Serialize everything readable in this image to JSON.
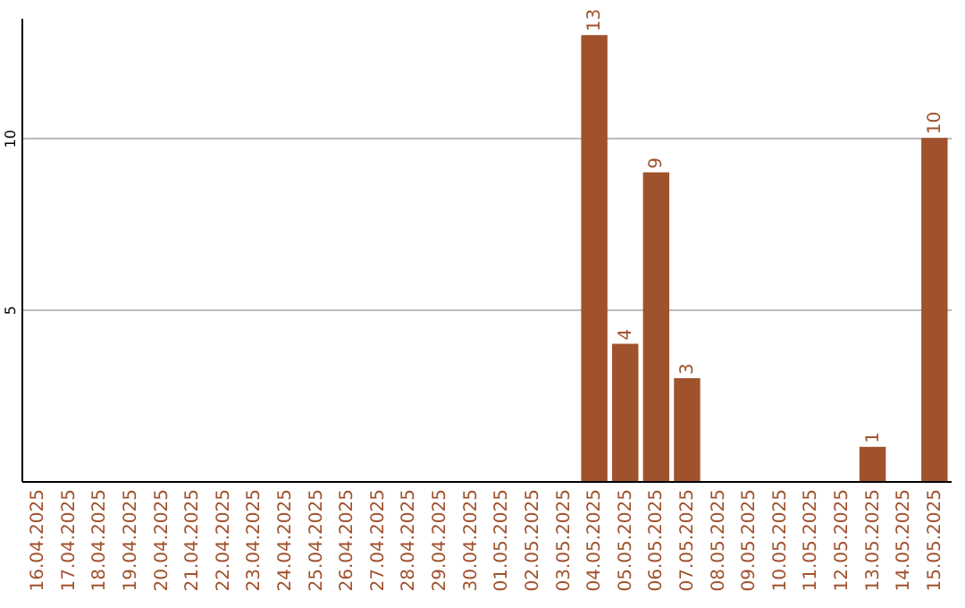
{
  "chart_data": {
    "type": "bar",
    "categories": [
      "16.04.2025",
      "17.04.2025",
      "18.04.2025",
      "19.04.2025",
      "20.04.2025",
      "21.04.2025",
      "22.04.2025",
      "23.04.2025",
      "24.04.2025",
      "25.04.2025",
      "26.04.2025",
      "27.04.2025",
      "28.04.2025",
      "29.04.2025",
      "30.04.2025",
      "01.05.2025",
      "02.05.2025",
      "03.05.2025",
      "04.05.2025",
      "05.05.2025",
      "06.05.2025",
      "07.05.2025",
      "08.05.2025",
      "09.05.2025",
      "10.05.2025",
      "11.05.2025",
      "12.05.2025",
      "13.05.2025",
      "14.05.2025",
      "15.05.2025"
    ],
    "values": [
      0,
      0,
      0,
      0,
      0,
      0,
      0,
      0,
      0,
      0,
      0,
      0,
      0,
      0,
      0,
      0,
      0,
      0,
      13,
      4,
      9,
      3,
      0,
      0,
      0,
      0,
      0,
      1,
      0,
      10
    ],
    "value_labels": [
      null,
      null,
      null,
      null,
      null,
      null,
      null,
      null,
      null,
      null,
      null,
      null,
      null,
      null,
      null,
      null,
      null,
      null,
      "13",
      "4",
      "9",
      "3",
      null,
      null,
      null,
      null,
      null,
      "1",
      null,
      "10"
    ],
    "color": "#a0522d",
    "ylim": [
      0,
      13.5
    ],
    "yticks": [
      5,
      10
    ],
    "grid": "y"
  }
}
